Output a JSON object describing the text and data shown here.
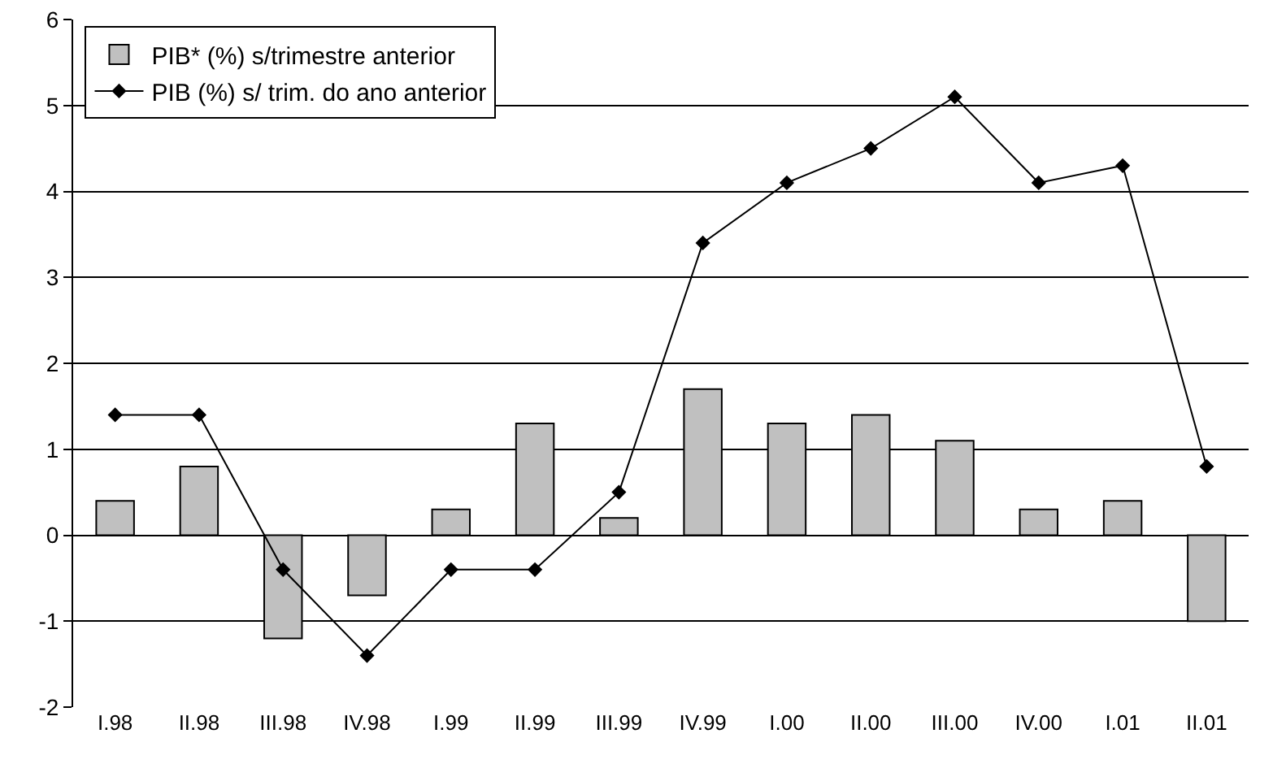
{
  "chart_data": {
    "type": "bar",
    "categories": [
      "I.98",
      "II.98",
      "III.98",
      "IV.98",
      "I.99",
      "II.99",
      "III.99",
      "IV.99",
      "I.00",
      "II.00",
      "III.00",
      "IV.00",
      "I.01",
      "II.01"
    ],
    "series": [
      {
        "name": "PIB* (%) s/trimestre anterior",
        "color": "#c0c0c0",
        "values": [
          0.4,
          0.8,
          -1.2,
          -0.7,
          0.3,
          1.3,
          0.2,
          1.7,
          1.3,
          1.4,
          1.1,
          0.3,
          0.4,
          -1.0
        ]
      },
      {
        "name": "PIB (%) s/ trim. do ano anterior",
        "type": "line",
        "color": "#000000",
        "marker": "diamond",
        "values": [
          1.4,
          1.4,
          -0.4,
          -1.4,
          -0.4,
          -0.4,
          0.5,
          3.4,
          4.1,
          4.5,
          5.1,
          4.1,
          4.3,
          0.8
        ]
      }
    ],
    "ylim": [
      -2,
      6
    ],
    "yticks": [
      -2,
      -1,
      0,
      1,
      2,
      3,
      4,
      5,
      6
    ],
    "grid": "y",
    "legend": "top left"
  }
}
